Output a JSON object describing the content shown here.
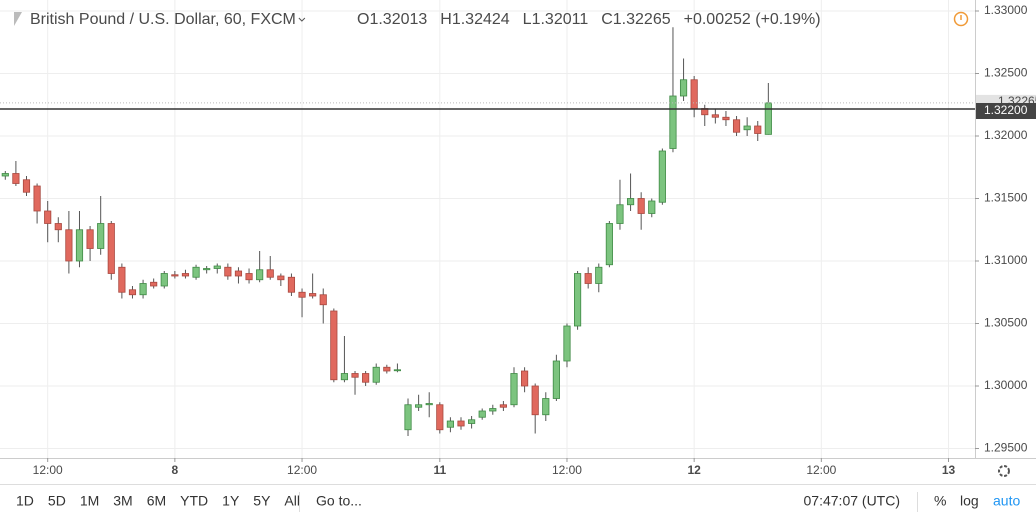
{
  "chart_data": {
    "type": "candlestick",
    "title": "British Pound / U.S. Dollar, 60, FXCM",
    "ohlc_labels": [
      "O1.32013",
      "H1.32424",
      "L1.32011",
      "C1.32265"
    ],
    "change_label": "+0.00252 (+0.19%)",
    "x": [
      0,
      1,
      2,
      3,
      4,
      5,
      6,
      7,
      8,
      9,
      10,
      11,
      12,
      13,
      14,
      15,
      16,
      17,
      18,
      19,
      20,
      21,
      22,
      23,
      24,
      25,
      26,
      27,
      28,
      29,
      30,
      31,
      32,
      33,
      34,
      35,
      36,
      37,
      38,
      39,
      40,
      41,
      42,
      43,
      44,
      45,
      46,
      47,
      48,
      49,
      50,
      51,
      52,
      53,
      54,
      55,
      56,
      57,
      58,
      59,
      60,
      61,
      62,
      63,
      64,
      65,
      66,
      67,
      68,
      69,
      70,
      71,
      72
    ],
    "open": [
      1.3168,
      1.317,
      1.3165,
      1.316,
      1.314,
      1.313,
      1.3125,
      1.31,
      1.3125,
      1.311,
      1.313,
      1.3095,
      1.3077,
      1.3073,
      1.3083,
      1.308,
      1.3089,
      1.309,
      1.3087,
      1.3093,
      1.3094,
      1.3095,
      1.3092,
      1.309,
      1.3085,
      1.3093,
      1.3088,
      1.3087,
      1.3075,
      1.3074,
      1.3073,
      1.306,
      1.3005,
      1.301,
      1.301,
      1.3003,
      1.3015,
      1.3013,
      1.2965,
      1.2983,
      1.2985,
      1.2985,
      1.2967,
      1.2972,
      1.297,
      1.2975,
      1.298,
      1.2985,
      1.2985,
      1.3012,
      1.3,
      1.2977,
      1.299,
      1.302,
      1.3048,
      1.309,
      1.3082,
      1.3097,
      1.313,
      1.3145,
      1.315,
      1.3138,
      1.3147,
      1.319,
      1.3232,
      1.3245,
      1.3222,
      1.3217,
      1.3215,
      1.3213,
      1.3205,
      1.3208,
      1.32013
    ],
    "high": [
      1.3172,
      1.318,
      1.3168,
      1.3162,
      1.3148,
      1.3135,
      1.314,
      1.314,
      1.3128,
      1.3152,
      1.3132,
      1.3098,
      1.308,
      1.3085,
      1.3086,
      1.3092,
      1.3092,
      1.3093,
      1.3097,
      1.3096,
      1.3098,
      1.3098,
      1.3095,
      1.3094,
      1.3108,
      1.3104,
      1.309,
      1.309,
      1.3078,
      1.309,
      1.3078,
      1.3062,
      1.304,
      1.3012,
      1.3012,
      1.3018,
      1.3017,
      1.3018,
      1.299,
      1.2993,
      1.2995,
      1.2987,
      1.2975,
      1.2975,
      1.2976,
      1.2982,
      1.2985,
      1.2988,
      1.3015,
      1.3015,
      1.3002,
      1.2995,
      1.3025,
      1.305,
      1.3092,
      1.3095,
      1.3098,
      1.3132,
      1.3165,
      1.317,
      1.3155,
      1.315,
      1.319,
      1.3287,
      1.3262,
      1.3248,
      1.3225,
      1.3222,
      1.322,
      1.3216,
      1.3215,
      1.3212,
      1.32424
    ],
    "low": [
      1.3165,
      1.316,
      1.3152,
      1.313,
      1.3115,
      1.3115,
      1.309,
      1.3095,
      1.31,
      1.3105,
      1.3085,
      1.307,
      1.307,
      1.307,
      1.3078,
      1.3078,
      1.3086,
      1.3086,
      1.3085,
      1.309,
      1.309,
      1.3085,
      1.3082,
      1.3082,
      1.3083,
      1.3085,
      1.308,
      1.3072,
      1.3055,
      1.307,
      1.305,
      1.3003,
      1.3003,
      1.2993,
      1.3,
      1.3001,
      1.301,
      1.3011,
      1.296,
      1.298,
      1.2975,
      1.2962,
      1.2963,
      1.2965,
      1.2966,
      1.2973,
      1.2977,
      1.298,
      1.2983,
      1.2995,
      1.2962,
      1.2972,
      1.2988,
      1.3015,
      1.3045,
      1.3078,
      1.3075,
      1.3095,
      1.3125,
      1.314,
      1.3125,
      1.3135,
      1.3145,
      1.3187,
      1.3228,
      1.3215,
      1.3208,
      1.321,
      1.3208,
      1.32,
      1.32,
      1.3196,
      1.32011
    ],
    "close": [
      1.317,
      1.3162,
      1.3155,
      1.314,
      1.313,
      1.3125,
      1.31,
      1.3125,
      1.311,
      1.313,
      1.309,
      1.3075,
      1.3073,
      1.3082,
      1.308,
      1.309,
      1.3088,
      1.3088,
      1.3095,
      1.3094,
      1.3096,
      1.3088,
      1.3088,
      1.3085,
      1.3093,
      1.3087,
      1.3085,
      1.3075,
      1.3071,
      1.3072,
      1.3065,
      1.3005,
      1.301,
      1.3007,
      1.3003,
      1.3015,
      1.3012,
      1.3013,
      1.2985,
      1.2985,
      1.2986,
      1.2965,
      1.2972,
      1.2968,
      1.2973,
      1.298,
      1.2982,
      1.2983,
      1.301,
      1.3,
      1.2977,
      1.299,
      1.302,
      1.3048,
      1.309,
      1.3082,
      1.3095,
      1.313,
      1.3145,
      1.315,
      1.3138,
      1.3148,
      1.3188,
      1.3232,
      1.3245,
      1.3222,
      1.3217,
      1.3215,
      1.3213,
      1.3203,
      1.3208,
      1.3202,
      1.32265
    ],
    "up_color": "#7cc47f",
    "down_color": "#e0695e",
    "xlim": [
      -0.5,
      91.5
    ],
    "xticks": [
      {
        "value": 4,
        "label": "12:00"
      },
      {
        "value": 16,
        "label": "8"
      },
      {
        "value": 28,
        "label": "12:00"
      },
      {
        "value": 41,
        "label": "11"
      },
      {
        "value": 53,
        "label": "12:00"
      },
      {
        "value": 65,
        "label": "12"
      },
      {
        "value": 77,
        "label": "12:00"
      },
      {
        "value": 89,
        "label": "13"
      }
    ],
    "ylim": [
      1.29424,
      1.33088
    ],
    "yticks": [
      {
        "value": 1.33,
        "label": "1.33000"
      },
      {
        "value": 1.325,
        "label": "1.32500"
      },
      {
        "value": 1.32,
        "label": "1.32000"
      },
      {
        "value": 1.315,
        "label": "1.31500"
      },
      {
        "value": 1.31,
        "label": "1.31000"
      },
      {
        "value": 1.305,
        "label": "1.30500"
      },
      {
        "value": 1.3,
        "label": "1.30000"
      },
      {
        "value": 1.295,
        "label": "1.29500"
      }
    ],
    "last_price": {
      "value": 1.32265,
      "label": "1.32265"
    },
    "hline": {
      "value": 1.322,
      "label": "1.32200"
    },
    "grid": true
  },
  "toolbar": {
    "ranges": [
      "1D",
      "5D",
      "1M",
      "3M",
      "6M",
      "YTD",
      "1Y",
      "5Y",
      "All"
    ],
    "goto": "Go to...",
    "clock": "07:47:07 (UTC)",
    "options": [
      "%",
      "log",
      "auto"
    ]
  }
}
